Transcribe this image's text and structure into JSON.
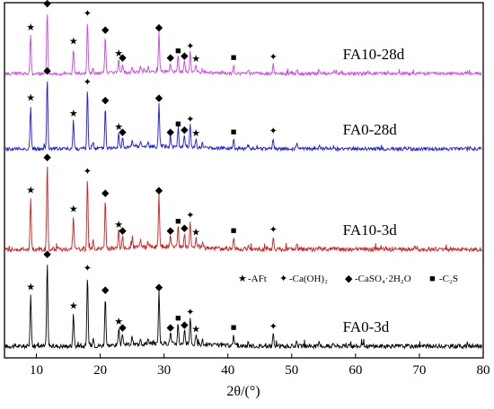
{
  "chart_data": {
    "type": "line",
    "title": "",
    "xlabel": "2θ/(°)",
    "ylabel": "",
    "xlim": [
      5,
      80
    ],
    "xticks": [
      10,
      20,
      30,
      40,
      50,
      60,
      70,
      80
    ],
    "ylim": [
      0,
      4
    ],
    "yticks_visible": false,
    "grid": false,
    "legend": {
      "placement": "inside, above FA0-3d trace",
      "entries": [
        {
          "symbol": "★",
          "text": "-AFt"
        },
        {
          "symbol": "✦",
          "text": "-Ca(OH)₂"
        },
        {
          "symbol": "◆",
          "text": "-CaSO₄·2H₂O"
        },
        {
          "symbol": "■",
          "text": "-C₂S"
        }
      ]
    },
    "series": [
      {
        "name": "FA0-3d",
        "color": "#000000",
        "offset": 0,
        "label_x": 58
      },
      {
        "name": "FA10-3d",
        "color": "#cc2222",
        "offset": 1,
        "label_x": 58
      },
      {
        "name": "FA0-28d",
        "color": "#1a1adf",
        "offset": 2,
        "label_x": 58
      },
      {
        "name": "FA10-28d",
        "color": "#cc44e6",
        "offset": 3,
        "label_x": 58
      }
    ],
    "peaks": [
      {
        "two_theta": 9.1,
        "h": 0.55,
        "phase": "AFt"
      },
      {
        "two_theta": 11.7,
        "h": 0.9,
        "phase": "CaSO4·2H2O"
      },
      {
        "two_theta": 15.8,
        "h": 0.35,
        "phase": "AFt"
      },
      {
        "two_theta": 18.0,
        "h": 0.75,
        "phase": "Ca(OH)2"
      },
      {
        "two_theta": 18.9,
        "h": 0.08,
        "phase": ""
      },
      {
        "two_theta": 20.8,
        "h": 0.52,
        "phase": "CaSO4·2H2O"
      },
      {
        "two_theta": 22.9,
        "h": 0.18,
        "phase": "AFt"
      },
      {
        "two_theta": 23.5,
        "h": 0.12,
        "phase": "CaSO4·2H2O"
      },
      {
        "two_theta": 25.0,
        "h": 0.07,
        "phase": ""
      },
      {
        "two_theta": 26.3,
        "h": 0.07,
        "phase": ""
      },
      {
        "two_theta": 27.5,
        "h": 0.06,
        "phase": ""
      },
      {
        "two_theta": 29.2,
        "h": 0.55,
        "phase": "CaSO4·2H2O"
      },
      {
        "two_theta": 31.0,
        "h": 0.12,
        "phase": "CaSO4·2H2O"
      },
      {
        "two_theta": 32.2,
        "h": 0.22,
        "phase": "C2S"
      },
      {
        "two_theta": 33.2,
        "h": 0.15,
        "phase": "CaSO4·2H2O"
      },
      {
        "two_theta": 34.1,
        "h": 0.28,
        "phase": "Ca(OH)2"
      },
      {
        "two_theta": 35.0,
        "h": 0.1,
        "phase": "AFt"
      },
      {
        "two_theta": 36.0,
        "h": 0.05,
        "phase": ""
      },
      {
        "two_theta": 40.9,
        "h": 0.12,
        "phase": "C2S"
      },
      {
        "two_theta": 43.2,
        "h": 0.05,
        "phase": ""
      },
      {
        "two_theta": 47.1,
        "h": 0.13,
        "phase": "Ca(OH)2"
      },
      {
        "two_theta": 50.8,
        "h": 0.06,
        "phase": ""
      },
      {
        "two_theta": 54.3,
        "h": 0.04,
        "phase": ""
      },
      {
        "two_theta": 56.6,
        "h": 0.03,
        "phase": ""
      }
    ]
  }
}
